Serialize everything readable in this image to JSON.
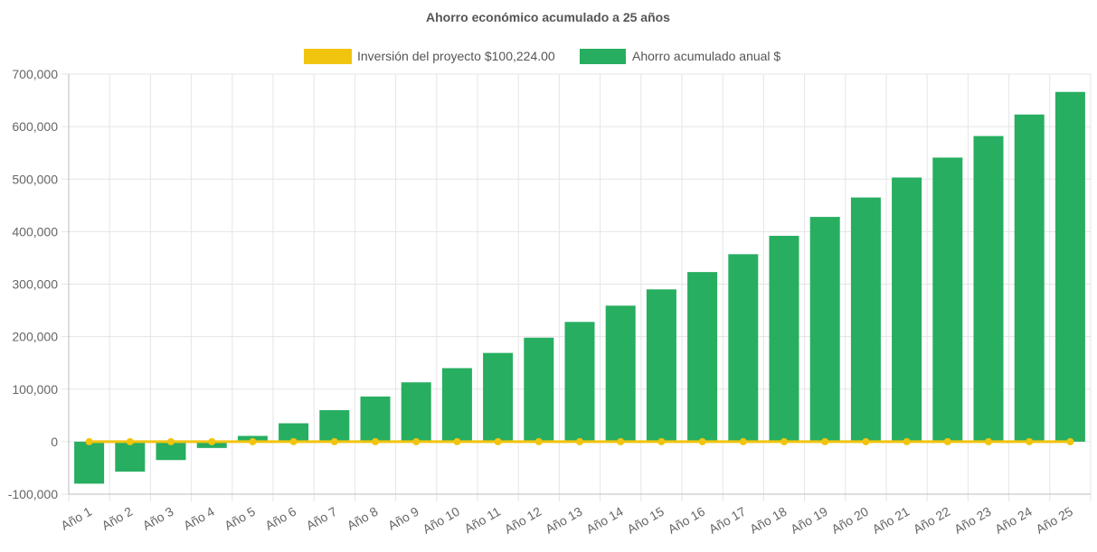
{
  "chart_data": {
    "type": "bar",
    "title": "Ahorro económico acumulado a 25 años",
    "xlabel": "",
    "ylabel": "",
    "categories": [
      "Año 1",
      "Año 2",
      "Año 3",
      "Año 4",
      "Año 5",
      "Año 6",
      "Año 7",
      "Año 8",
      "Año 9",
      "Año 10",
      "Año 11",
      "Año 12",
      "Año 13",
      "Año 14",
      "Año 15",
      "Año 16",
      "Año 17",
      "Año 18",
      "Año 19",
      "Año 20",
      "Año 21",
      "Año 22",
      "Año 23",
      "Año 24",
      "Año 25"
    ],
    "ylim": [
      -100000,
      700000
    ],
    "yticks": [
      -100000,
      0,
      100000,
      200000,
      300000,
      400000,
      500000,
      600000,
      700000
    ],
    "ytick_labels": [
      "-100,000",
      "0",
      "100,000",
      "200,000",
      "300,000",
      "400,000",
      "500,000",
      "600,000",
      "700,000"
    ],
    "grid": true,
    "legend_position": "top",
    "series": [
      {
        "name": "Inversión del proyecto $100,224.00",
        "type": "line",
        "color": "#f1c40f",
        "values": [
          0,
          0,
          0,
          0,
          0,
          0,
          0,
          0,
          0,
          0,
          0,
          0,
          0,
          0,
          0,
          0,
          0,
          0,
          0,
          0,
          0,
          0,
          0,
          0,
          0
        ]
      },
      {
        "name": "Ahorro acumulado anual $",
        "type": "bar",
        "color": "#27ae60",
        "values": [
          -80000,
          -57000,
          -35000,
          -12000,
          11000,
          35000,
          60000,
          86000,
          113000,
          140000,
          169000,
          198000,
          228000,
          259000,
          290000,
          323000,
          357000,
          392000,
          428000,
          465000,
          503000,
          541000,
          582000,
          623000,
          666000
        ]
      }
    ]
  }
}
